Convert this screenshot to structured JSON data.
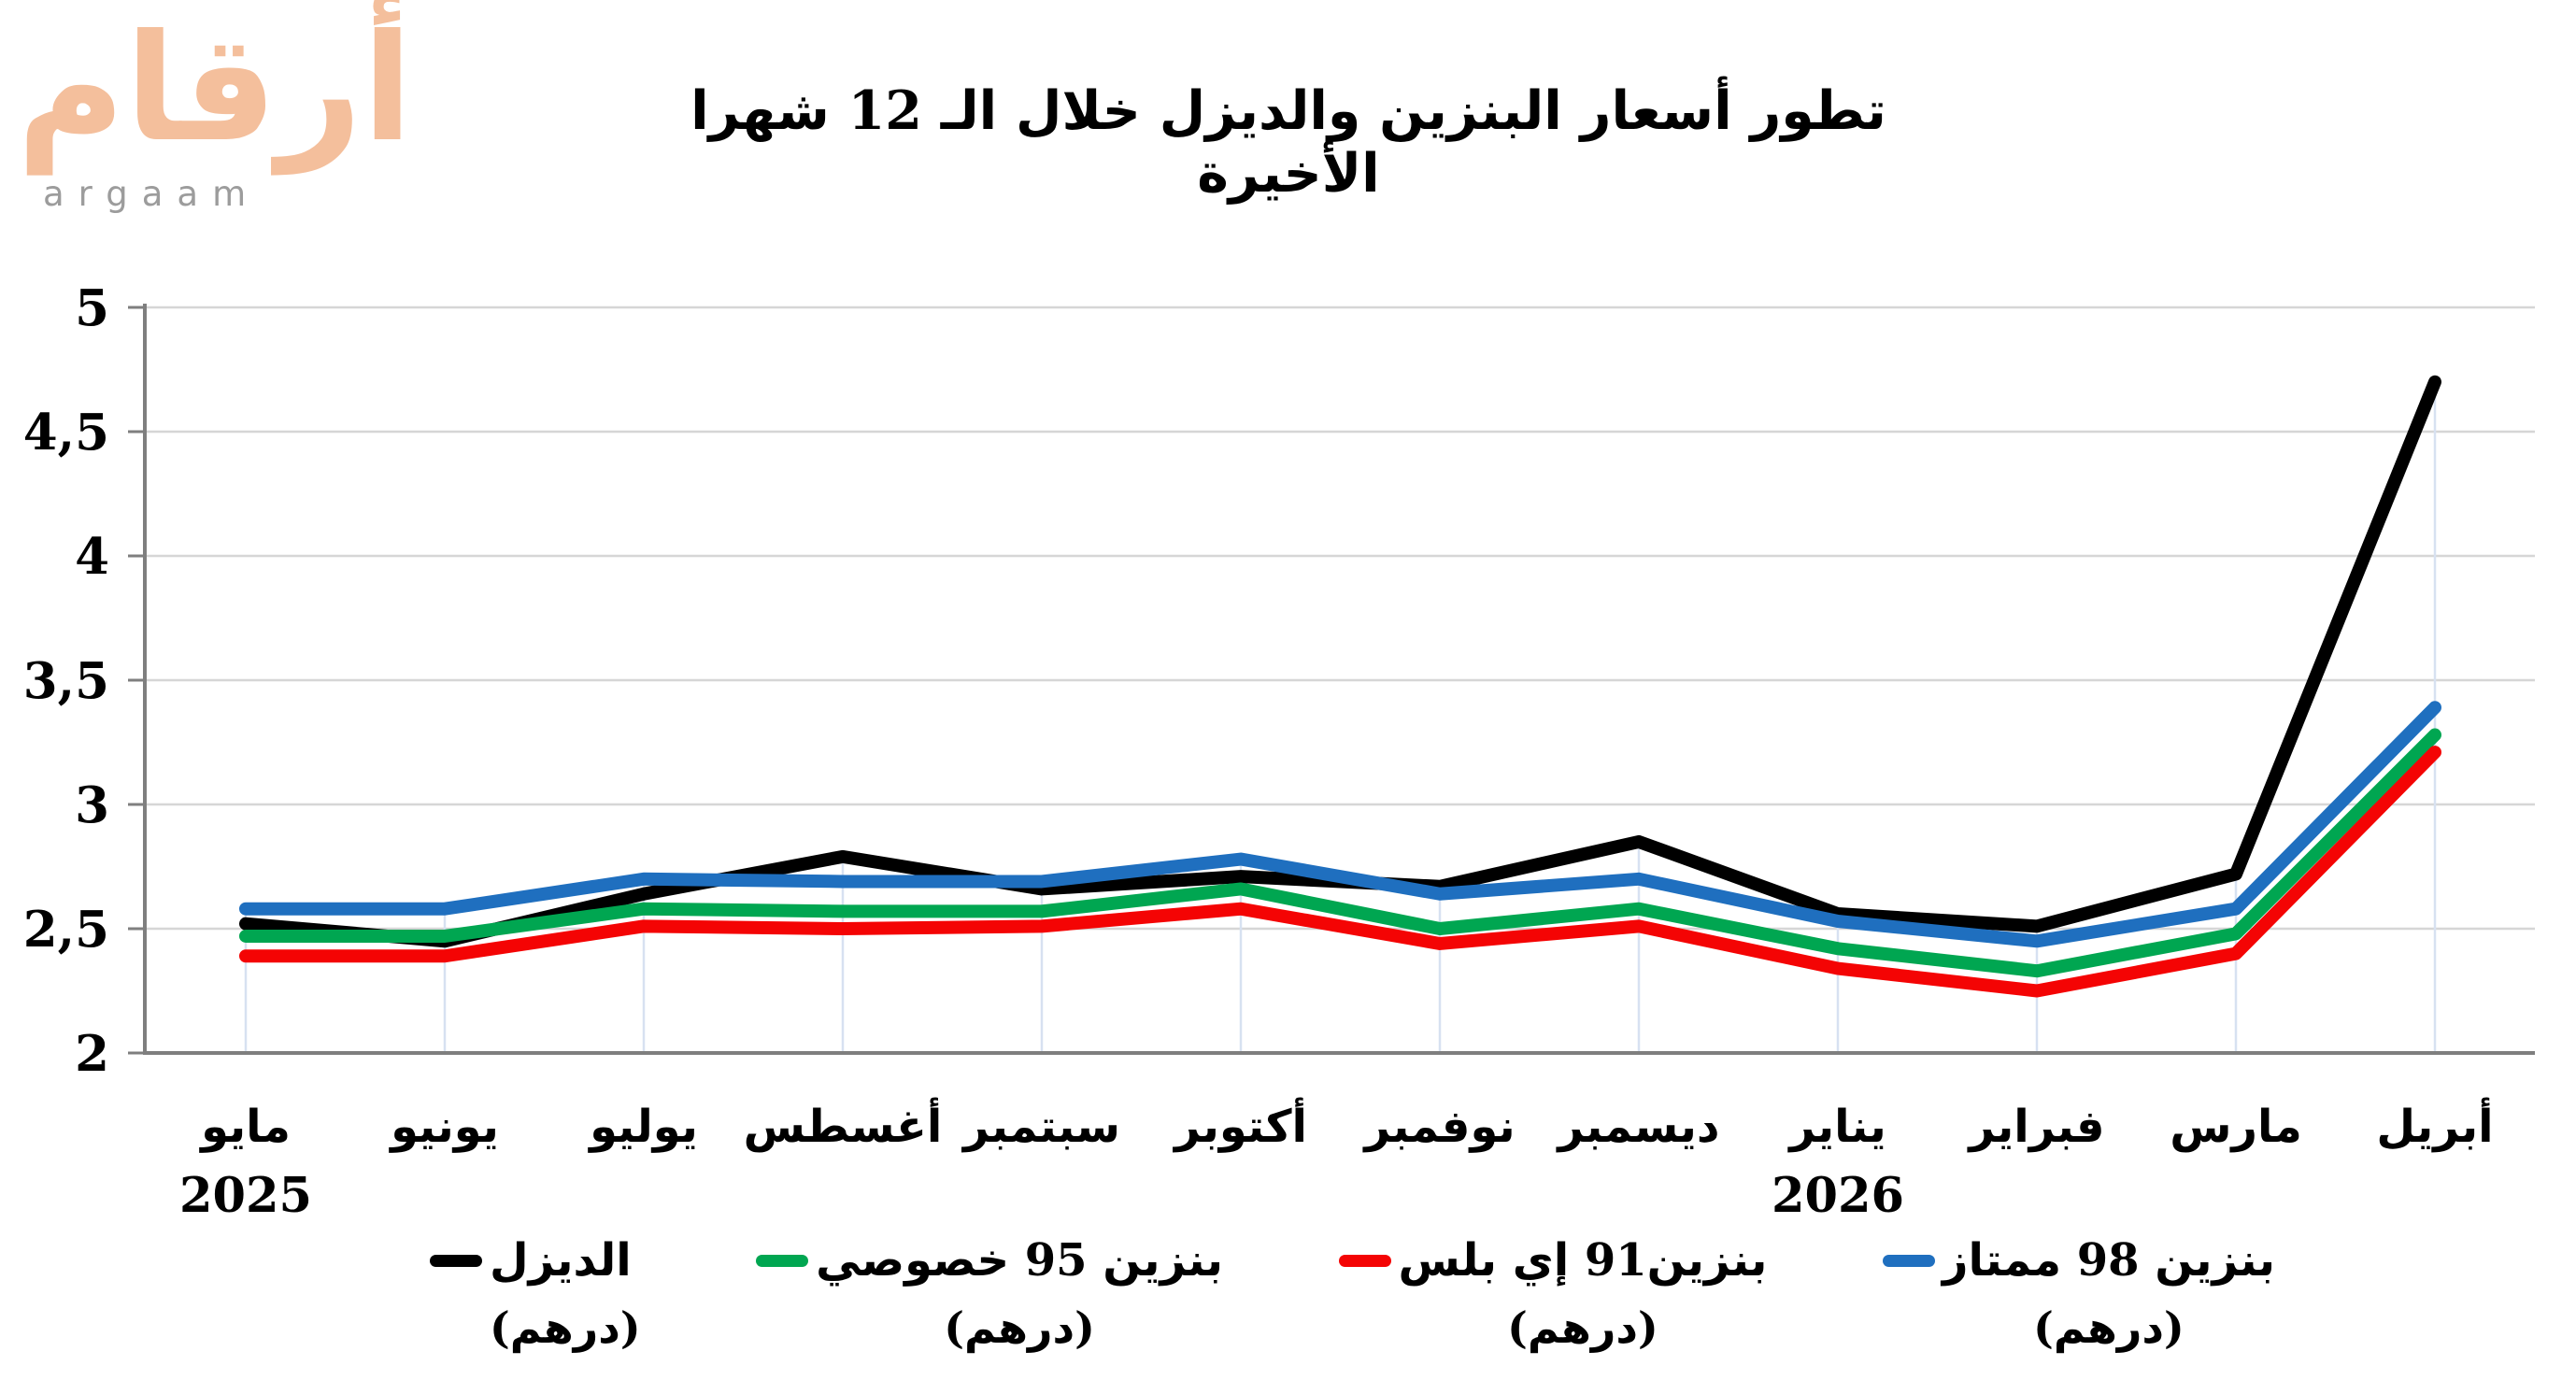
{
  "logo": {
    "arabic": "أرقام",
    "latin": "argaam",
    "arabic_color": "#F4BF9C",
    "latin_color": "#9C9C9C"
  },
  "title": "تطور أسعار البنزين والديزل خلال الـ 12 شهرا الأخيرة",
  "chart_data": {
    "type": "line",
    "title": "تطور أسعار البنزين والديزل خلال الـ 12 شهرا الأخيرة",
    "categories": [
      "مايو",
      "يونيو",
      "يوليو",
      "أغسطس",
      "سبتمبر",
      "أكتوبر",
      "نوفمبر",
      "ديسمبر",
      "يناير",
      "فبراير",
      "مارس",
      "أبريل"
    ],
    "year_labels": [
      {
        "index": 0,
        "label": "2025"
      },
      {
        "index": 8,
        "label": "2026"
      }
    ],
    "ylim": [
      2,
      5
    ],
    "ytick_step": 0.5,
    "ytick_labels": [
      "2",
      "2,5",
      "3",
      "3,5",
      "4",
      "4,5",
      "5"
    ],
    "grid": true,
    "droplines": true,
    "legend_position": "bottom",
    "axis_color": "#7F7F7F",
    "grid_color": "#D6D6D6",
    "dropline_color": "#D7E1F1",
    "series": [
      {
        "key": "diesel",
        "legend_label": "الديزل",
        "legend_unit": "(درهم)",
        "color": "#000000",
        "values": [
          2.52,
          2.45,
          2.64,
          2.79,
          2.66,
          2.71,
          2.67,
          2.85,
          2.56,
          2.51,
          2.72,
          4.7
        ]
      },
      {
        "key": "benzine-95-special",
        "legend_label": "بنزين 95 خصوصي",
        "legend_unit": "(درهم)",
        "color": "#00A651",
        "values": [
          2.47,
          2.47,
          2.58,
          2.57,
          2.57,
          2.66,
          2.5,
          2.58,
          2.42,
          2.33,
          2.48,
          3.28
        ]
      },
      {
        "key": "benzine-91-eplus",
        "legend_label": "بنزين91 إي بلس",
        "legend_unit": "(درهم)",
        "color": "#F40404",
        "values": [
          2.39,
          2.39,
          2.51,
          2.5,
          2.51,
          2.58,
          2.44,
          2.51,
          2.34,
          2.25,
          2.4,
          3.21
        ]
      },
      {
        "key": "benzine-98-premium",
        "legend_label": "بنزين 98 ممتاز",
        "legend_unit": "(درهم)",
        "color": "#1F6FBF",
        "values": [
          2.58,
          2.58,
          2.7,
          2.69,
          2.69,
          2.78,
          2.64,
          2.7,
          2.53,
          2.45,
          2.58,
          3.39
        ]
      }
    ]
  }
}
